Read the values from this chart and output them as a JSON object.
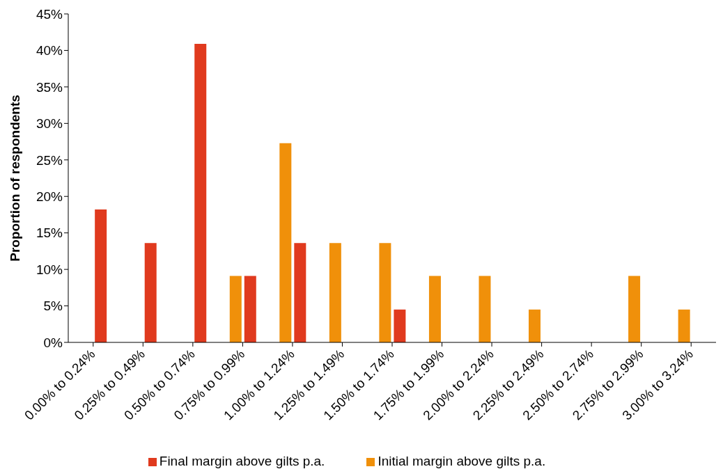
{
  "chart_data": {
    "type": "bar",
    "ylabel": "Proportion of respondents",
    "categories": [
      "0.00% to 0.24%",
      "0.25% to 0.49%",
      "0.50% to 0.74%",
      "0.75% to 0.99%",
      "1.00% to 1.24%",
      "1.25% to 1.49%",
      "1.50% to 1.74%",
      "1.75% to 1.99%",
      "2.00% to 2.24%",
      "2.25% to 2.49%",
      "2.50% to 2.74%",
      "2.75% to 2.99%",
      "3.00% to 3.24%"
    ],
    "series": [
      {
        "name": "Initial margin above gilts p.a.",
        "color": "#f0900a",
        "values": [
          null,
          null,
          null,
          9.1,
          27.3,
          13.6,
          13.6,
          9.1,
          9.1,
          4.5,
          null,
          9.1,
          4.5
        ]
      },
      {
        "name": "Final margin above gilts p.a.",
        "color": "#e03a1e",
        "values": [
          18.2,
          13.6,
          40.9,
          9.1,
          13.6,
          null,
          4.5,
          null,
          null,
          null,
          null,
          null,
          null
        ]
      }
    ],
    "ylim": [
      0,
      45
    ],
    "yticks": [
      {
        "value": 0,
        "label": "0%"
      },
      {
        "value": 5,
        "label": "5%"
      },
      {
        "value": 10,
        "label": "10%"
      },
      {
        "value": 15,
        "label": "15%"
      },
      {
        "value": 20,
        "label": "20%"
      },
      {
        "value": 25,
        "label": "25%"
      },
      {
        "value": 30,
        "label": "30%"
      },
      {
        "value": 35,
        "label": "35%"
      },
      {
        "value": 40,
        "label": "40%"
      },
      {
        "value": 45,
        "label": "45%"
      }
    ],
    "grid": false,
    "legend": "bottom"
  }
}
